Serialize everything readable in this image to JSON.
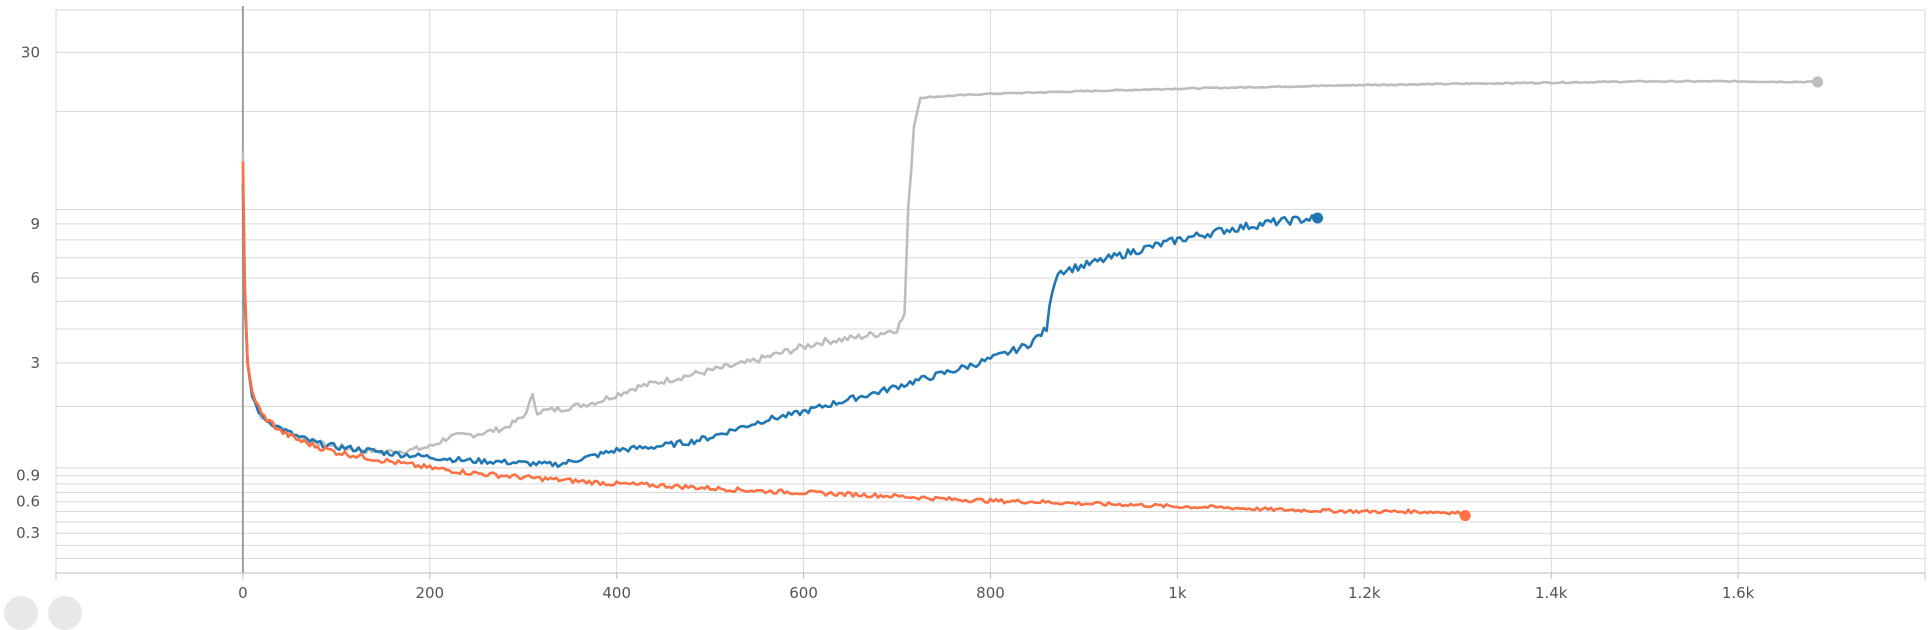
{
  "chart_data": {
    "type": "line",
    "title": "",
    "xlabel": "",
    "ylabel": "",
    "xlim": [
      -200,
      1800
    ],
    "ylim": [
      0,
      40
    ],
    "y_scale": "symlog",
    "grid": true,
    "x_ticks": [
      {
        "value": 0,
        "label": "0"
      },
      {
        "value": 200,
        "label": "200"
      },
      {
        "value": 400,
        "label": "400"
      },
      {
        "value": 600,
        "label": "600"
      },
      {
        "value": 800,
        "label": "800"
      },
      {
        "value": 1000,
        "label": "1k"
      },
      {
        "value": 1200,
        "label": "1.2k"
      },
      {
        "value": 1400,
        "label": "1.4k"
      },
      {
        "value": 1600,
        "label": "1.6k"
      }
    ],
    "y_ticks": [
      {
        "value": 0.3,
        "label": "0.3"
      },
      {
        "value": 0.6,
        "label": "0.6"
      },
      {
        "value": 0.9,
        "label": "0.9"
      },
      {
        "value": 3,
        "label": "3"
      },
      {
        "value": 6,
        "label": "6"
      },
      {
        "value": 9,
        "label": "9"
      },
      {
        "value": 30,
        "label": "30"
      }
    ],
    "y_gridlines": [
      0.1,
      0.2,
      0.3,
      0.4,
      0.5,
      0.6,
      0.7,
      0.8,
      0.9,
      1,
      2,
      3,
      4,
      5,
      6,
      7,
      8,
      9,
      10,
      20,
      30,
      40
    ],
    "series": [
      {
        "color": "#bdbdbd",
        "points": [
          [
            0,
            15
          ],
          [
            2,
            6
          ],
          [
            5,
            3
          ],
          [
            10,
            2.2
          ],
          [
            20,
            1.8
          ],
          [
            40,
            1.6
          ],
          [
            60,
            1.45
          ],
          [
            80,
            1.35
          ],
          [
            100,
            1.3
          ],
          [
            120,
            1.27
          ],
          [
            150,
            1.22
          ],
          [
            180,
            1.25
          ],
          [
            200,
            1.3
          ],
          [
            220,
            1.45
          ],
          [
            250,
            1.5
          ],
          [
            280,
            1.6
          ],
          [
            300,
            1.8
          ],
          [
            310,
            2.2
          ],
          [
            315,
            1.9
          ],
          [
            340,
            1.95
          ],
          [
            380,
            2.1
          ],
          [
            420,
            2.4
          ],
          [
            460,
            2.6
          ],
          [
            500,
            2.8
          ],
          [
            540,
            3.0
          ],
          [
            580,
            3.3
          ],
          [
            620,
            3.6
          ],
          [
            650,
            3.7
          ],
          [
            680,
            3.85
          ],
          [
            700,
            4.0
          ],
          [
            708,
            4.5
          ],
          [
            712,
            10
          ],
          [
            718,
            18
          ],
          [
            725,
            22
          ],
          [
            760,
            22.3
          ],
          [
            800,
            22.6
          ],
          [
            900,
            23
          ],
          [
            1000,
            23.4
          ],
          [
            1100,
            23.7
          ],
          [
            1200,
            24
          ],
          [
            1300,
            24.2
          ],
          [
            1400,
            24.4
          ],
          [
            1500,
            24.6
          ],
          [
            1600,
            24.6
          ],
          [
            1685,
            24.5
          ]
        ]
      },
      {
        "color": "#1f77b4",
        "points": [
          [
            0,
            12
          ],
          [
            2,
            5
          ],
          [
            5,
            3
          ],
          [
            10,
            2.2
          ],
          [
            20,
            1.8
          ],
          [
            40,
            1.6
          ],
          [
            60,
            1.45
          ],
          [
            80,
            1.35
          ],
          [
            100,
            1.3
          ],
          [
            130,
            1.25
          ],
          [
            160,
            1.2
          ],
          [
            200,
            1.15
          ],
          [
            240,
            1.1
          ],
          [
            280,
            1.08
          ],
          [
            320,
            1.05
          ],
          [
            340,
            1.05
          ],
          [
            360,
            1.12
          ],
          [
            380,
            1.18
          ],
          [
            400,
            1.25
          ],
          [
            440,
            1.3
          ],
          [
            480,
            1.38
          ],
          [
            500,
            1.45
          ],
          [
            530,
            1.6
          ],
          [
            560,
            1.75
          ],
          [
            590,
            1.85
          ],
          [
            620,
            2.0
          ],
          [
            650,
            2.15
          ],
          [
            680,
            2.3
          ],
          [
            720,
            2.55
          ],
          [
            760,
            2.8
          ],
          [
            800,
            3.1
          ],
          [
            840,
            3.5
          ],
          [
            860,
            4.0
          ],
          [
            866,
            5.5
          ],
          [
            872,
            6.3
          ],
          [
            900,
            6.6
          ],
          [
            950,
            7.3
          ],
          [
            1000,
            8.0
          ],
          [
            1050,
            8.6
          ],
          [
            1100,
            9.1
          ],
          [
            1150,
            9.4
          ]
        ]
      },
      {
        "color": "#ff7043",
        "points": [
          [
            0,
            14
          ],
          [
            2,
            5.5
          ],
          [
            5,
            3
          ],
          [
            10,
            2.3
          ],
          [
            20,
            1.85
          ],
          [
            40,
            1.55
          ],
          [
            60,
            1.4
          ],
          [
            80,
            1.3
          ],
          [
            100,
            1.22
          ],
          [
            130,
            1.15
          ],
          [
            160,
            1.08
          ],
          [
            200,
            1.0
          ],
          [
            250,
            0.93
          ],
          [
            300,
            0.88
          ],
          [
            350,
            0.84
          ],
          [
            400,
            0.8
          ],
          [
            450,
            0.78
          ],
          [
            500,
            0.75
          ],
          [
            550,
            0.72
          ],
          [
            600,
            0.7
          ],
          [
            650,
            0.68
          ],
          [
            700,
            0.66
          ],
          [
            750,
            0.63
          ],
          [
            800,
            0.61
          ],
          [
            850,
            0.6
          ],
          [
            900,
            0.58
          ],
          [
            950,
            0.57
          ],
          [
            1000,
            0.55
          ],
          [
            1050,
            0.54
          ],
          [
            1100,
            0.52
          ],
          [
            1150,
            0.51
          ],
          [
            1200,
            0.5
          ],
          [
            1250,
            0.5
          ],
          [
            1300,
            0.49
          ],
          [
            1308,
            0.46
          ]
        ]
      }
    ]
  }
}
